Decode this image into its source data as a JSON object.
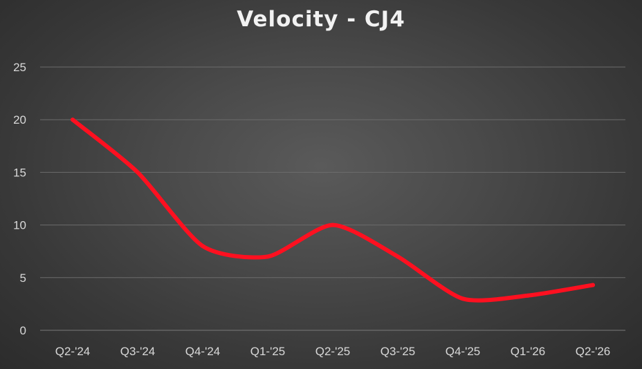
{
  "chart_data": {
    "type": "line",
    "title": "Velocity - CJ4",
    "xlabel": "",
    "ylabel": "",
    "categories": [
      "Q2-'24",
      "Q3-'24",
      "Q4-'24",
      "Q1-'25",
      "Q2-'25",
      "Q3-'25",
      "Q4-'25",
      "Q1-'26",
      "Q2-'26"
    ],
    "series": [
      {
        "values": [
          20,
          15,
          8,
          7,
          10,
          7,
          3,
          3.3,
          4.3
        ],
        "color": "#ff1020"
      }
    ],
    "ylim": [
      0,
      25
    ],
    "yticks": [
      "0",
      "5",
      "10",
      "15",
      "20",
      "25"
    ],
    "grid": true,
    "legend": "none"
  }
}
